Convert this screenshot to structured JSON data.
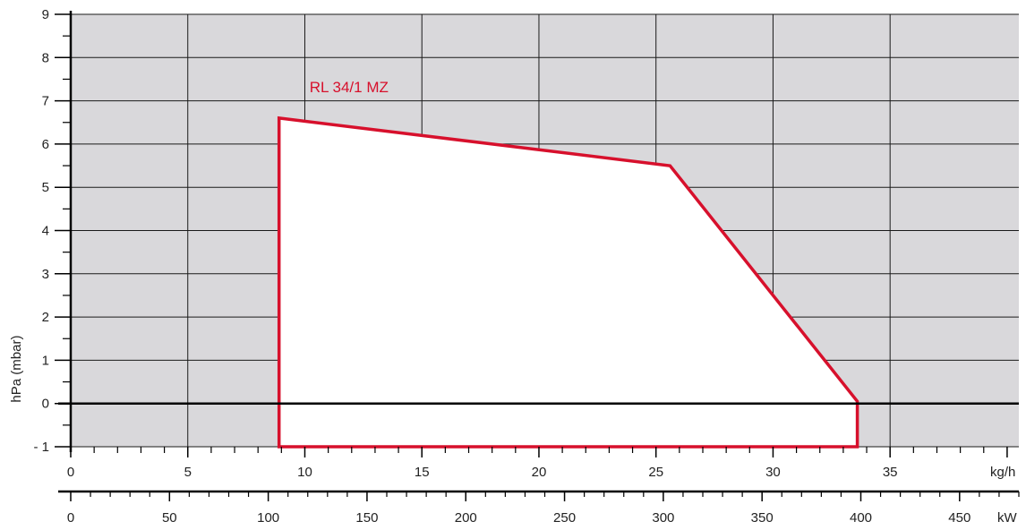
{
  "chart_data": {
    "type": "area",
    "title": "",
    "ylabel": "hPa (mbar)",
    "ylim": [
      -1,
      9
    ],
    "yticks": [
      "- 1",
      "0",
      "1",
      "2",
      "3",
      "4",
      "5",
      "6",
      "7",
      "8",
      "9"
    ],
    "x_primary": {
      "unit": "kg/h",
      "range": [
        0,
        40.5
      ],
      "ticks": [
        "0",
        "5",
        "10",
        "15",
        "20",
        "25",
        "30",
        "35"
      ]
    },
    "x_secondary": {
      "unit": "kW",
      "range": [
        0,
        480
      ],
      "ticks": [
        "0",
        "50",
        "100",
        "150",
        "200",
        "250",
        "300",
        "350",
        "400",
        "450"
      ]
    },
    "grid": true,
    "series": [
      {
        "name": "RL 34/1 MZ",
        "x_unit": "kg/h",
        "points": [
          {
            "x": 8.9,
            "y": -1
          },
          {
            "x": 8.9,
            "y": 6.6
          },
          {
            "x": 25.6,
            "y": 5.5
          },
          {
            "x": 33.6,
            "y": 0.05
          },
          {
            "x": 33.6,
            "y": -1
          }
        ]
      }
    ],
    "colors": {
      "background": "#d9d8db",
      "envelope_fill": "#ffffff",
      "envelope_stroke": "#d7102c",
      "grid": "#1a1a1a",
      "axis": "#000000"
    }
  }
}
